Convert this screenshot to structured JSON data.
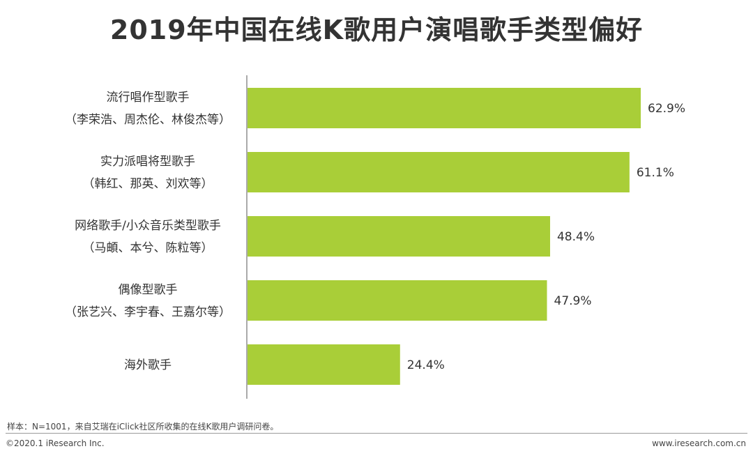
{
  "chart_data": {
    "type": "bar",
    "orientation": "horizontal",
    "title": "2019年中国在线K歌用户演唱歌手类型偏好",
    "categories": [
      {
        "name": "流行唱作型歌手",
        "examples": "（李荣浩、周杰伦、林俊杰等）"
      },
      {
        "name": "实力派唱将型歌手",
        "examples": "（韩红、那英、刘欢等）"
      },
      {
        "name": "网络歌手/小众音乐类型歌手",
        "examples": "（马頔、本兮、陈粒等）"
      },
      {
        "name": "偶像型歌手",
        "examples": "（张艺兴、李宇春、王嘉尔等）"
      },
      {
        "name": "海外歌手",
        "examples": ""
      }
    ],
    "values": [
      62.9,
      61.1,
      48.4,
      47.9,
      24.4
    ],
    "value_labels": [
      "62.9%",
      "61.1%",
      "48.4%",
      "47.9%",
      "24.4%"
    ],
    "unit": "%",
    "xlim": [
      0,
      100
    ],
    "grid": false,
    "legend": "none",
    "bar_color": "#a9ce38"
  },
  "note": "样本：N=1001，来自艾瑞在iClick社区所收集的在线K歌用户调研问卷。",
  "footer": {
    "copyright": "©2020.1 iResearch Inc.",
    "website": "www.iresearch.com.cn"
  }
}
